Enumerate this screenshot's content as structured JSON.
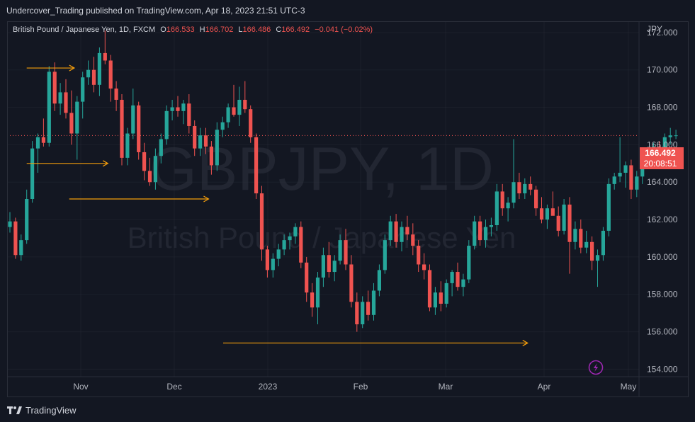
{
  "header": {
    "publish_line": "Undercover_Trading published on TradingView.com, Apr 18, 2023 21:51 UTC-3"
  },
  "footer": {
    "brand": "TradingView",
    "logo_icon": "tradingview-logo-icon"
  },
  "legend": {
    "symbol": "British Pound / Japanese Yen, 1D, FXCM",
    "o_label": "O",
    "o_value": "166.533",
    "h_label": "H",
    "h_value": "166.702",
    "l_label": "L",
    "l_value": "166.486",
    "c_label": "C",
    "c_value": "166.492",
    "change": "−0.041 (−0.02%)"
  },
  "watermark": {
    "line1": "GBPJPY, 1D",
    "line2": "British Pound / Japanese Yen"
  },
  "price_axis": {
    "currency": "JPY"
  },
  "current_price": {
    "value": "166.492",
    "countdown": "20:08:51"
  },
  "alert_icon": "lightning-icon",
  "colors": {
    "up": "#26a69a",
    "down": "#ef5350",
    "annotation": "#f59e0b",
    "background": "#131722",
    "grid": "#2a2e39"
  },
  "chart_data": {
    "type": "candlestick",
    "title": "",
    "y_ticks": [
      "172.000",
      "170.000",
      "168.000",
      "166.000",
      "164.000",
      "162.000",
      "160.000",
      "158.000",
      "156.000",
      "154.000"
    ],
    "ylim": [
      153.6,
      172.6
    ],
    "x_ticks": [
      "Nov",
      "Dec",
      "2023",
      "Feb",
      "Mar",
      "Apr",
      "May"
    ],
    "current_price": 166.492,
    "candles": [
      [
        161.6,
        162.4,
        161.3,
        161.9
      ],
      [
        161.9,
        162.1,
        159.9,
        160.1
      ],
      [
        160.1,
        161.2,
        159.8,
        160.9
      ],
      [
        160.9,
        163.6,
        160.7,
        163.1
      ],
      [
        163.1,
        166.2,
        162.9,
        165.8
      ],
      [
        165.8,
        166.6,
        164.5,
        166.4
      ],
      [
        166.4,
        167.4,
        165.9,
        166.1
      ],
      [
        166.1,
        170.2,
        165.9,
        169.9
      ],
      [
        169.9,
        170.4,
        167.8,
        168.2
      ],
      [
        168.2,
        169.3,
        167.6,
        168.8
      ],
      [
        168.8,
        169.5,
        167.4,
        167.7
      ],
      [
        167.7,
        168.9,
        166.0,
        166.6
      ],
      [
        166.6,
        168.6,
        165.2,
        168.3
      ],
      [
        168.3,
        169.9,
        167.4,
        169.6
      ],
      [
        169.6,
        170.5,
        169.2,
        170.0
      ],
      [
        170.0,
        170.7,
        168.8,
        169.2
      ],
      [
        169.2,
        171.2,
        168.6,
        170.9
      ],
      [
        170.9,
        172.1,
        170.3,
        170.5
      ],
      [
        170.5,
        170.8,
        168.3,
        169.0
      ],
      [
        169.0,
        169.4,
        167.8,
        168.4
      ],
      [
        168.4,
        168.7,
        164.9,
        165.3
      ],
      [
        165.3,
        166.9,
        164.9,
        166.6
      ],
      [
        166.6,
        169.0,
        166.3,
        168.1
      ],
      [
        168.1,
        168.3,
        165.2,
        165.6
      ],
      [
        165.6,
        166.1,
        164.1,
        164.6
      ],
      [
        164.6,
        165.3,
        163.8,
        164.0
      ],
      [
        164.0,
        165.8,
        163.6,
        165.4
      ],
      [
        165.4,
        166.6,
        165.0,
        166.3
      ],
      [
        166.3,
        168.1,
        166.0,
        167.8
      ],
      [
        167.8,
        168.4,
        167.3,
        168.0
      ],
      [
        168.0,
        168.6,
        167.5,
        167.8
      ],
      [
        167.8,
        168.4,
        167.1,
        168.2
      ],
      [
        168.2,
        168.7,
        166.6,
        167.0
      ],
      [
        167.0,
        167.3,
        165.4,
        165.8
      ],
      [
        165.8,
        166.9,
        165.4,
        166.5
      ],
      [
        166.5,
        166.9,
        165.5,
        165.9
      ],
      [
        165.9,
        166.2,
        164.4,
        164.9
      ],
      [
        164.9,
        167.2,
        164.6,
        166.8
      ],
      [
        166.8,
        167.5,
        166.4,
        167.2
      ],
      [
        167.2,
        168.2,
        166.9,
        168.0
      ],
      [
        168.0,
        169.2,
        167.5,
        167.6
      ],
      [
        167.6,
        169.1,
        167.0,
        168.4
      ],
      [
        168.4,
        169.4,
        167.7,
        167.9
      ],
      [
        167.9,
        168.1,
        166.1,
        166.4
      ],
      [
        166.4,
        166.6,
        163.1,
        163.4
      ],
      [
        163.4,
        163.8,
        159.8,
        160.4
      ],
      [
        160.4,
        160.6,
        158.9,
        159.3
      ],
      [
        159.3,
        160.2,
        158.9,
        159.9
      ],
      [
        159.9,
        160.7,
        159.5,
        160.4
      ],
      [
        160.4,
        161.2,
        160.1,
        160.9
      ],
      [
        160.9,
        161.3,
        160.4,
        161.1
      ],
      [
        161.1,
        161.8,
        160.7,
        161.6
      ],
      [
        161.6,
        161.9,
        159.4,
        159.7
      ],
      [
        159.7,
        160.0,
        157.6,
        158.1
      ],
      [
        158.1,
        158.6,
        156.8,
        157.3
      ],
      [
        157.3,
        159.2,
        156.4,
        158.9
      ],
      [
        158.9,
        160.5,
        158.4,
        160.1
      ],
      [
        160.1,
        160.8,
        158.9,
        159.2
      ],
      [
        159.2,
        160.1,
        158.7,
        159.8
      ],
      [
        159.8,
        161.2,
        159.6,
        160.9
      ],
      [
        160.9,
        161.5,
        159.3,
        159.6
      ],
      [
        159.6,
        160.1,
        157.3,
        157.6
      ],
      [
        157.6,
        158.1,
        156.0,
        156.4
      ],
      [
        156.4,
        157.9,
        156.2,
        157.6
      ],
      [
        157.6,
        158.2,
        156.6,
        156.9
      ],
      [
        156.9,
        158.6,
        156.6,
        158.2
      ],
      [
        158.2,
        159.6,
        157.9,
        159.3
      ],
      [
        159.3,
        161.2,
        159.1,
        160.9
      ],
      [
        160.9,
        162.2,
        160.6,
        161.9
      ],
      [
        161.9,
        162.3,
        160.5,
        160.8
      ],
      [
        160.8,
        161.9,
        160.3,
        161.6
      ],
      [
        161.6,
        162.2,
        160.9,
        161.2
      ],
      [
        161.2,
        161.8,
        160.1,
        160.6
      ],
      [
        160.6,
        160.9,
        159.2,
        159.6
      ],
      [
        159.6,
        160.2,
        158.8,
        159.3
      ],
      [
        159.3,
        159.6,
        157.1,
        157.3
      ],
      [
        157.3,
        158.4,
        156.9,
        158.1
      ],
      [
        158.1,
        158.7,
        157.1,
        157.5
      ],
      [
        157.5,
        158.8,
        157.3,
        158.6
      ],
      [
        158.6,
        159.3,
        157.9,
        159.2
      ],
      [
        159.2,
        159.7,
        158.2,
        158.4
      ],
      [
        158.4,
        159.1,
        157.9,
        158.8
      ],
      [
        158.8,
        160.9,
        158.6,
        160.6
      ],
      [
        160.6,
        162.2,
        160.4,
        161.9
      ],
      [
        161.9,
        162.2,
        160.6,
        160.9
      ],
      [
        160.9,
        162.0,
        160.5,
        161.6
      ],
      [
        161.6,
        162.1,
        161.1,
        161.7
      ],
      [
        161.7,
        163.9,
        161.4,
        163.5
      ],
      [
        163.5,
        163.9,
        162.2,
        162.6
      ],
      [
        162.6,
        163.2,
        161.9,
        162.9
      ],
      [
        162.9,
        166.3,
        162.6,
        164.0
      ],
      [
        164.0,
        164.5,
        163.1,
        163.4
      ],
      [
        163.4,
        164.2,
        163.1,
        163.9
      ],
      [
        163.9,
        164.3,
        163.3,
        163.6
      ],
      [
        163.6,
        163.8,
        162.2,
        162.6
      ],
      [
        162.6,
        163.2,
        161.8,
        162.0
      ],
      [
        162.0,
        162.8,
        161.5,
        162.6
      ],
      [
        162.6,
        163.5,
        162.3,
        162.2
      ],
      [
        162.2,
        162.7,
        161.1,
        161.4
      ],
      [
        161.4,
        163.1,
        161.2,
        162.8
      ],
      [
        162.8,
        163.2,
        159.1,
        160.8
      ],
      [
        160.8,
        161.9,
        160.4,
        161.5
      ],
      [
        161.5,
        162.0,
        160.2,
        160.5
      ],
      [
        160.5,
        161.4,
        160.2,
        160.8
      ],
      [
        160.8,
        161.1,
        159.3,
        159.8
      ],
      [
        159.8,
        160.4,
        158.4,
        160.1
      ],
      [
        160.1,
        161.6,
        159.8,
        161.4
      ],
      [
        161.4,
        164.2,
        161.1,
        163.9
      ],
      [
        163.9,
        164.5,
        163.6,
        164.3
      ],
      [
        164.3,
        166.4,
        164.0,
        164.5
      ],
      [
        164.5,
        165.1,
        163.7,
        164.9
      ],
      [
        164.9,
        165.2,
        163.1,
        163.6
      ],
      [
        163.6,
        164.6,
        163.2,
        164.3
      ],
      [
        164.3,
        165.5,
        163.9,
        165.2
      ],
      [
        165.2,
        165.9,
        165.0,
        165.7
      ],
      [
        165.7,
        166.1,
        165.1,
        165.9
      ],
      [
        165.9,
        166.2,
        165.4,
        165.8
      ],
      [
        165.8,
        166.6,
        165.5,
        166.4
      ],
      [
        166.4,
        166.9,
        166.0,
        166.5
      ],
      [
        166.5,
        166.8,
        166.3,
        166.5
      ]
    ],
    "annotations": [
      {
        "type": "arrow",
        "from": [
          3.0,
          170.1
        ],
        "to": [
          11.5,
          170.1
        ]
      },
      {
        "type": "arrow",
        "from": [
          3.0,
          165.0
        ],
        "to": [
          17.5,
          165.0
        ]
      },
      {
        "type": "arrow",
        "from": [
          10.6,
          163.1
        ],
        "to": [
          35.5,
          163.1
        ]
      },
      {
        "type": "arrow",
        "from": [
          38.1,
          155.4
        ],
        "to": [
          92.5,
          155.4
        ]
      }
    ]
  }
}
